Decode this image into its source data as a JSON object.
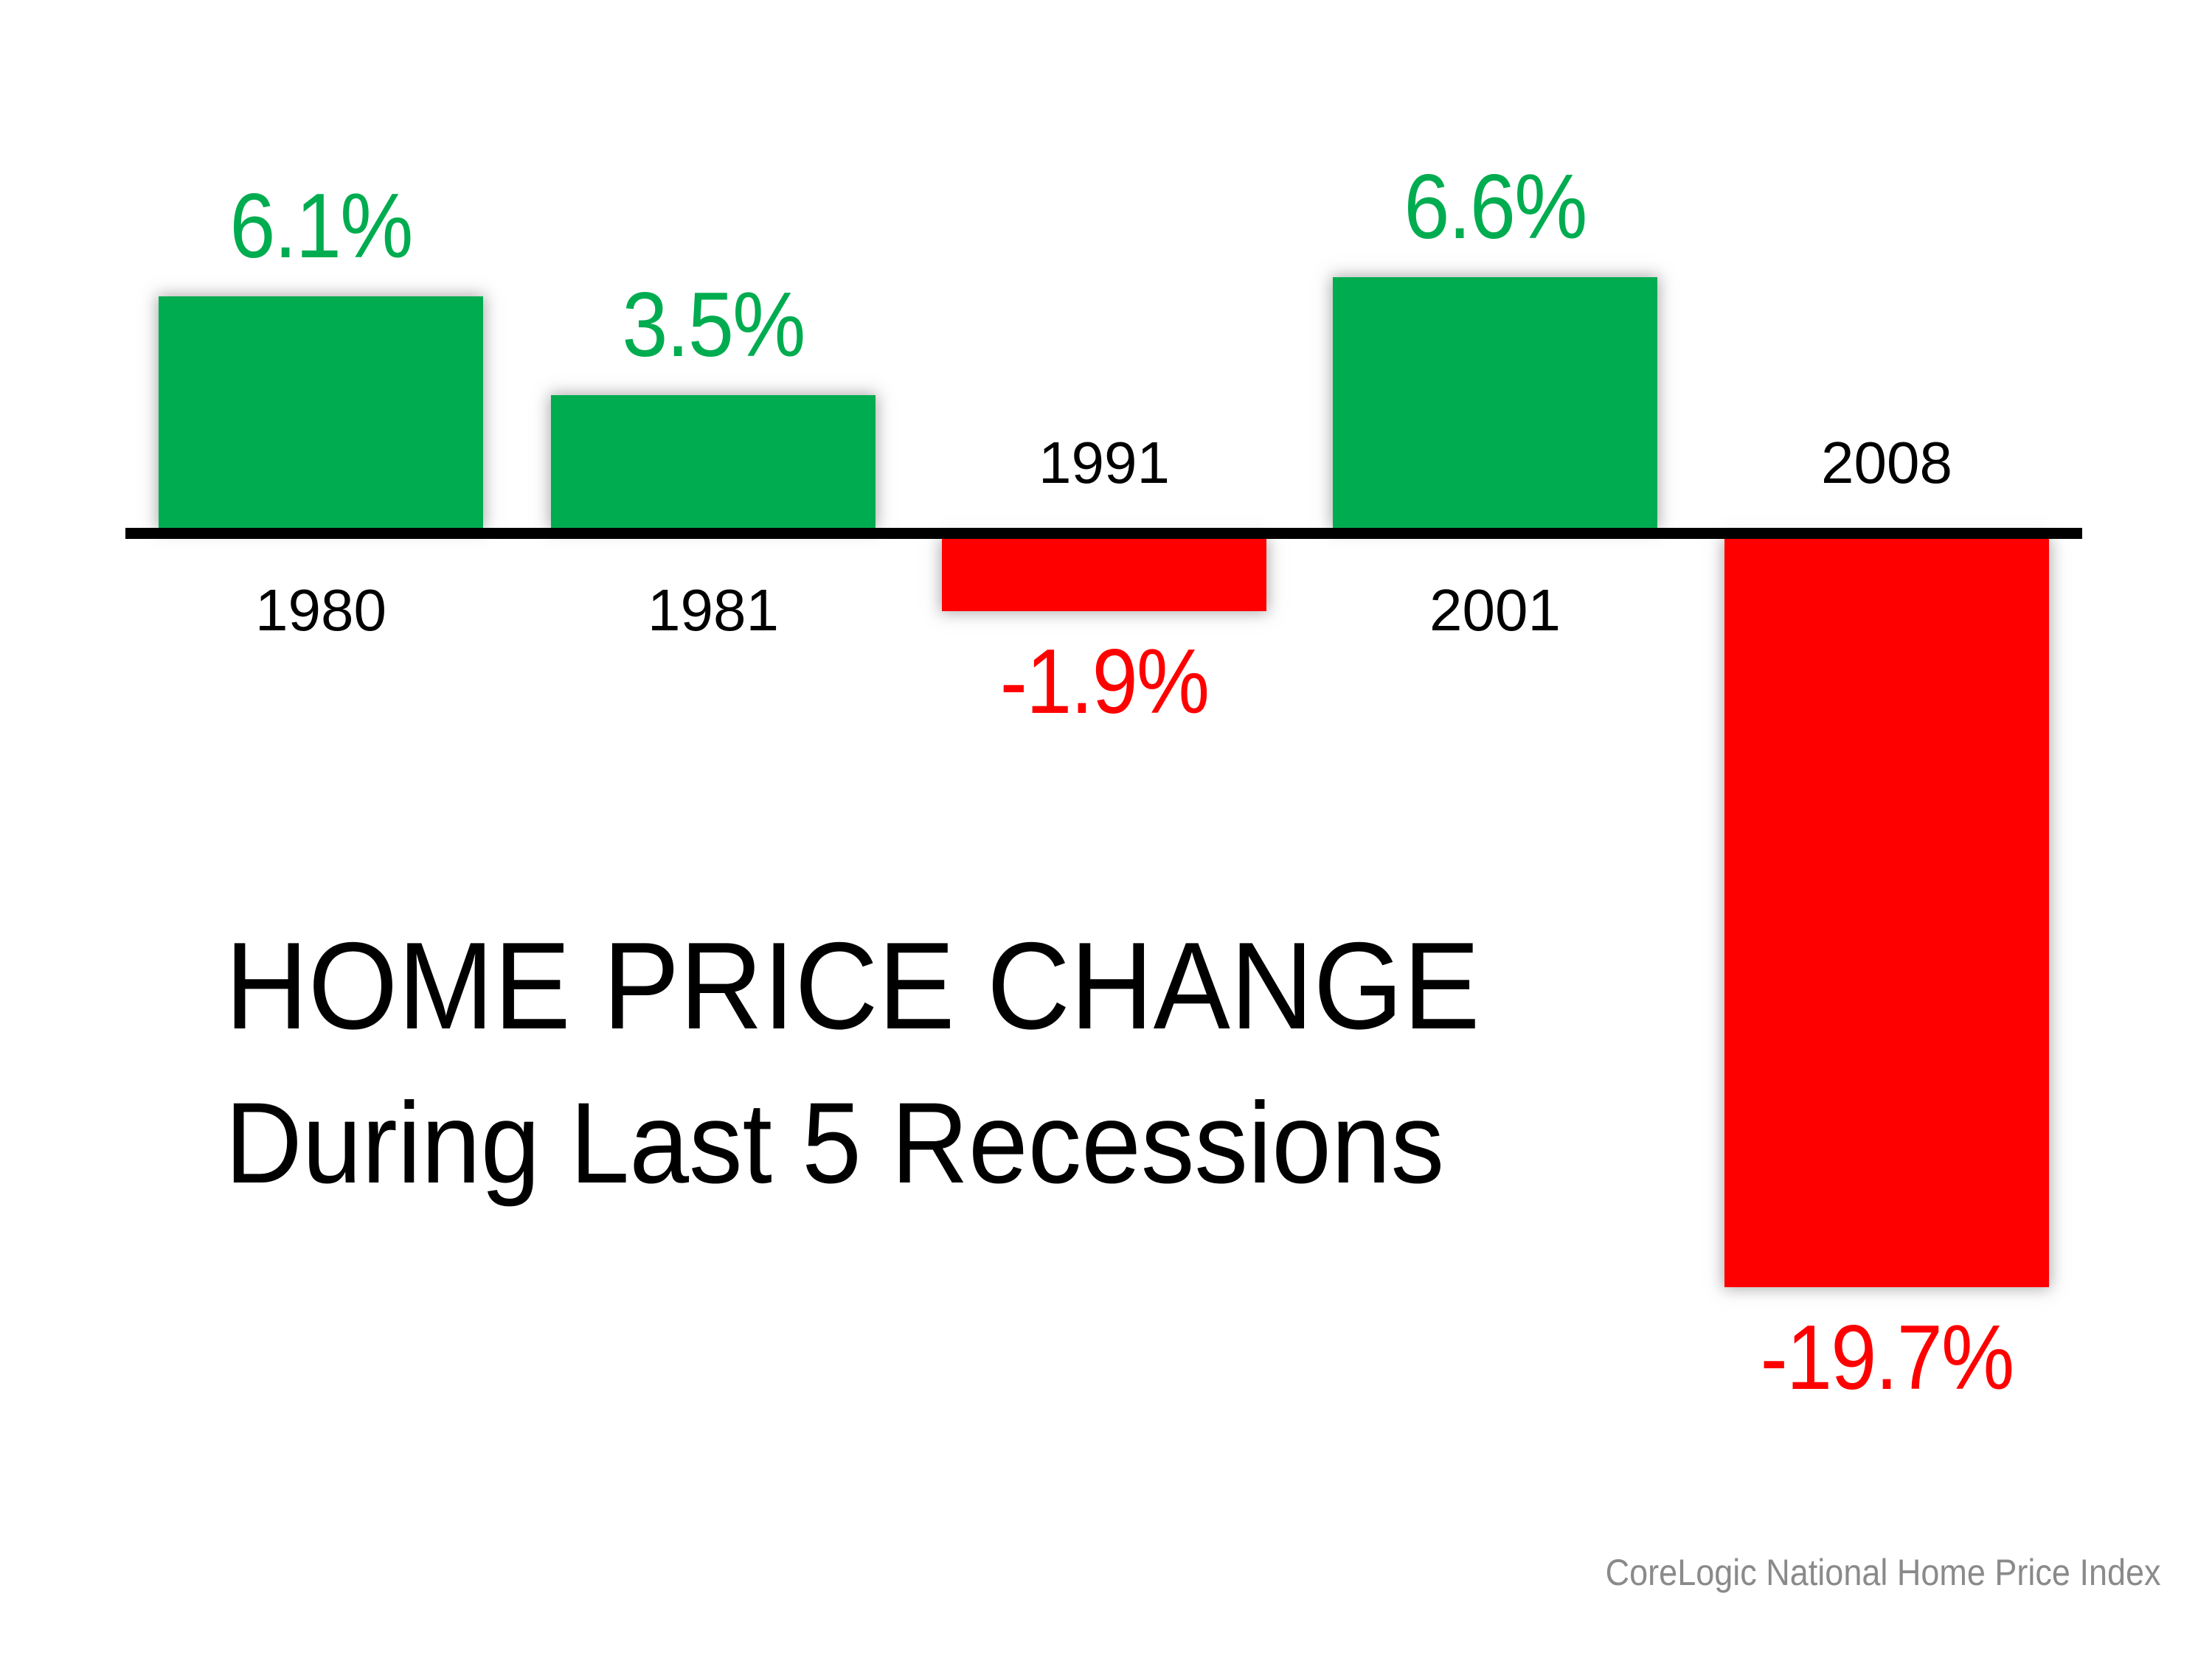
{
  "title": {
    "line1": "HOME PRICE CHANGE",
    "line2": "During Last 5 Recessions"
  },
  "source": "CoreLogic National Home Price Index",
  "colors": {
    "positive_bar": "#00AC50",
    "negative_bar": "#FF0000",
    "positive_label": "#00AC50",
    "negative_label": "#FF0000",
    "axis": "#000000",
    "title_text": "#000000",
    "year_text": "#000000",
    "source_text": "#8A8A8A",
    "background": "#FFFFFF"
  },
  "chart_data": {
    "type": "bar",
    "title": "HOME PRICE CHANGE During Last 5 Recessions",
    "categories": [
      "1980",
      "1981",
      "1991",
      "2001",
      "2008"
    ],
    "values": [
      6.1,
      3.5,
      -1.9,
      6.6,
      -19.7
    ],
    "data_labels": [
      "6.1%",
      "3.5%",
      "-1.9%",
      "6.6%",
      "-19.7%"
    ],
    "xlabel": "",
    "ylabel": "",
    "ylim": [
      -19.7,
      6.6
    ],
    "grid": false,
    "legend_position": "none",
    "baseline": 0,
    "bar_color_rule": "green if positive, red if negative",
    "label_position": "outside end of bar, year labels on opposite side of axis",
    "source": "CoreLogic National Home Price Index"
  }
}
